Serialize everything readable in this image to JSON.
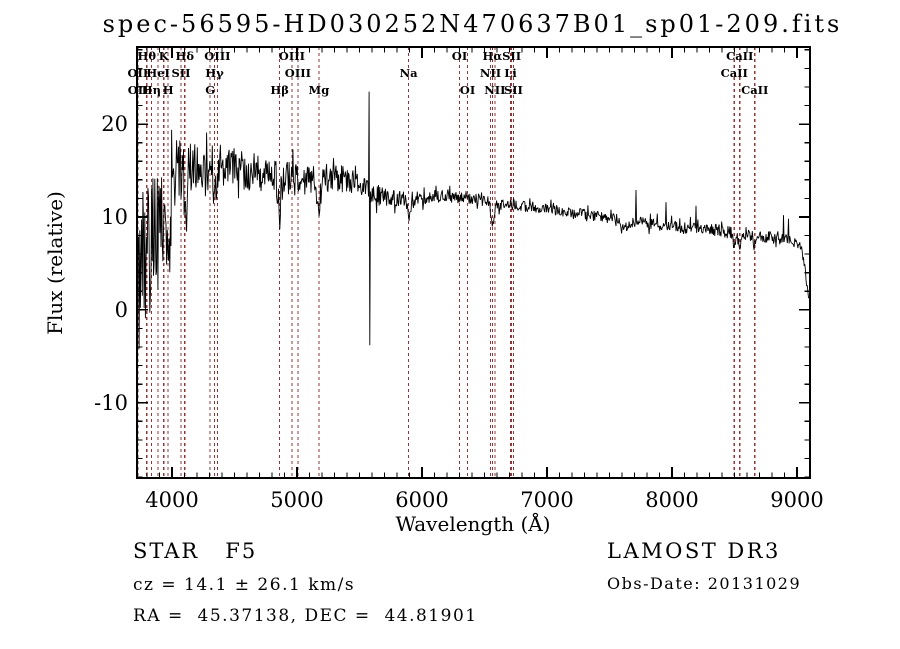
{
  "title": "spec-56595-HD030252N470637B01_sp01-209.fits",
  "footer": {
    "class_label": "STAR   F5",
    "cz": "cz = 14.1 ± 26.1 km/s",
    "radec": "RA =  45.37138, DEC =  44.81901",
    "survey": "LAMOST DR3",
    "obs_date": "Obs-Date: 20131029"
  },
  "chart_data": {
    "type": "line",
    "title": "spec-56595-HD030252N470637B01_sp01-209.fits",
    "xlabel": "Wavelength (Å)",
    "ylabel": "Flux (relative)",
    "xlim": [
      3720,
      9104
    ],
    "ylim": [
      -18.1,
      28.3
    ],
    "x_ticks": [
      4000,
      5000,
      6000,
      7000,
      8000,
      9000
    ],
    "x_tick_labels": [
      "4000",
      "5000",
      "6000",
      "7000",
      "8000",
      "9000"
    ],
    "y_ticks": [
      -10,
      0,
      10,
      20
    ],
    "y_tick_labels": [
      "-10",
      "0",
      "10",
      "20"
    ],
    "x_minor_step": 100,
    "y_minor_step": 2,
    "grid": false,
    "legend": "none",
    "line_color": "#000000",
    "marker_line_color": "#993333",
    "spectral_lines": [
      {
        "label": "Hθ",
        "wavelength": 3798,
        "row": 1
      },
      {
        "label": "K",
        "wavelength": 3934,
        "row": 1
      },
      {
        "label": "Hδ",
        "wavelength": 4102,
        "row": 1
      },
      {
        "label": "OIII",
        "wavelength": 4363,
        "row": 1
      },
      {
        "label": "OIII",
        "wavelength": 4959,
        "row": 1
      },
      {
        "label": "OI",
        "wavelength": 6300,
        "row": 1
      },
      {
        "label": "Hα",
        "wavelength": 6563,
        "row": 1
      },
      {
        "label": "SII",
        "wavelength": 6717,
        "row": 1
      },
      {
        "label": "CaII",
        "wavelength": 8542,
        "row": 1
      },
      {
        "label": "OII",
        "wavelength": 3727,
        "row": 2
      },
      {
        "label": "HeI",
        "wavelength": 3889,
        "row": 2
      },
      {
        "label": "SII",
        "wavelength": 4072,
        "row": 2
      },
      {
        "label": "Hγ",
        "wavelength": 4340,
        "row": 2
      },
      {
        "label": "OIII",
        "wavelength": 5007,
        "row": 2
      },
      {
        "label": "Na",
        "wavelength": 5893,
        "row": 2
      },
      {
        "label": "NII",
        "wavelength": 6548,
        "row": 2
      },
      {
        "label": "Li",
        "wavelength": 6708,
        "row": 2
      },
      {
        "label": "CaII",
        "wavelength": 8498,
        "row": 2
      },
      {
        "label": "OII",
        "wavelength": 3729,
        "row": 3
      },
      {
        "label": "Hη",
        "wavelength": 3835,
        "row": 3
      },
      {
        "label": "H",
        "wavelength": 3969,
        "row": 3
      },
      {
        "label": "G",
        "wavelength": 4305,
        "row": 3
      },
      {
        "label": "Hβ",
        "wavelength": 4861,
        "row": 3
      },
      {
        "label": "Mg",
        "wavelength": 5175,
        "row": 3
      },
      {
        "label": "OI",
        "wavelength": 6364,
        "row": 3
      },
      {
        "label": "NII",
        "wavelength": 6583,
        "row": 3
      },
      {
        "label": "SII",
        "wavelength": 6731,
        "row": 3
      },
      {
        "label": "CaII",
        "wavelength": 8662,
        "row": 3
      }
    ],
    "continuum": [
      [
        3720,
        2.0
      ],
      [
        3745,
        4.0
      ],
      [
        3775,
        6.5
      ],
      [
        3810,
        8.5
      ],
      [
        3860,
        10.5
      ],
      [
        3910,
        12.5
      ],
      [
        3960,
        13.5
      ],
      [
        4010,
        14.5
      ],
      [
        4060,
        15.2
      ],
      [
        4150,
        15.6
      ],
      [
        4350,
        15.5
      ],
      [
        4550,
        15.1
      ],
      [
        4750,
        14.6
      ],
      [
        4950,
        14.1
      ],
      [
        5150,
        14.0
      ],
      [
        5320,
        14.3
      ],
      [
        5480,
        13.6
      ],
      [
        5600,
        12.4
      ],
      [
        5750,
        12.0
      ],
      [
        5900,
        11.9
      ],
      [
        6100,
        12.3
      ],
      [
        6250,
        12.1
      ],
      [
        6450,
        11.9
      ],
      [
        6600,
        11.4
      ],
      [
        6800,
        11.2
      ],
      [
        7000,
        10.9
      ],
      [
        7200,
        10.5
      ],
      [
        7400,
        10.1
      ],
      [
        7600,
        9.7
      ],
      [
        7800,
        9.3
      ],
      [
        8000,
        9.0
      ],
      [
        8200,
        8.8
      ],
      [
        8400,
        8.5
      ],
      [
        8600,
        8.1
      ],
      [
        8800,
        7.8
      ],
      [
        8950,
        7.5
      ],
      [
        9030,
        6.8
      ],
      [
        9060,
        5.0
      ],
      [
        9085,
        2.0
      ],
      [
        9100,
        1.0
      ]
    ],
    "noise_amplitude": [
      [
        3720,
        13
      ],
      [
        3760,
        11
      ],
      [
        3810,
        9
      ],
      [
        3870,
        7
      ],
      [
        3930,
        5.5
      ],
      [
        3990,
        4.5
      ],
      [
        4080,
        3.6
      ],
      [
        4250,
        3.0
      ],
      [
        4500,
        2.6
      ],
      [
        4800,
        2.2
      ],
      [
        5100,
        2.0
      ],
      [
        5400,
        1.7
      ],
      [
        5600,
        1.3
      ],
      [
        5800,
        1.0
      ],
      [
        6000,
        0.85
      ],
      [
        6400,
        0.75
      ],
      [
        6900,
        0.7
      ],
      [
        7500,
        0.7
      ],
      [
        8000,
        0.75
      ],
      [
        8400,
        0.85
      ],
      [
        8800,
        0.8
      ],
      [
        9100,
        0.5
      ]
    ],
    "absorption_dips": [
      [
        3835,
        3,
        12
      ],
      [
        3889,
        3,
        12
      ],
      [
        3934,
        5,
        14
      ],
      [
        3969,
        5,
        14
      ],
      [
        4102,
        4.5,
        12
      ],
      [
        4305,
        2,
        14
      ],
      [
        4340,
        4,
        12
      ],
      [
        4861,
        4,
        12
      ],
      [
        5175,
        2.5,
        16
      ],
      [
        5893,
        1.6,
        14
      ],
      [
        6563,
        2.2,
        12
      ],
      [
        7620,
        0.8,
        25
      ],
      [
        8498,
        1.2,
        10
      ],
      [
        8542,
        1.5,
        11
      ],
      [
        8662,
        1.2,
        10
      ]
    ],
    "spikes": [
      [
        5577,
        23.5
      ],
      [
        5582,
        -3.8
      ],
      [
        7710,
        12.9
      ],
      [
        7952,
        11.6
      ],
      [
        8190,
        11.2
      ],
      [
        8890,
        10.2
      ],
      [
        8930,
        9.8
      ]
    ],
    "sample_step": 5,
    "noise_seed": 20131029
  }
}
